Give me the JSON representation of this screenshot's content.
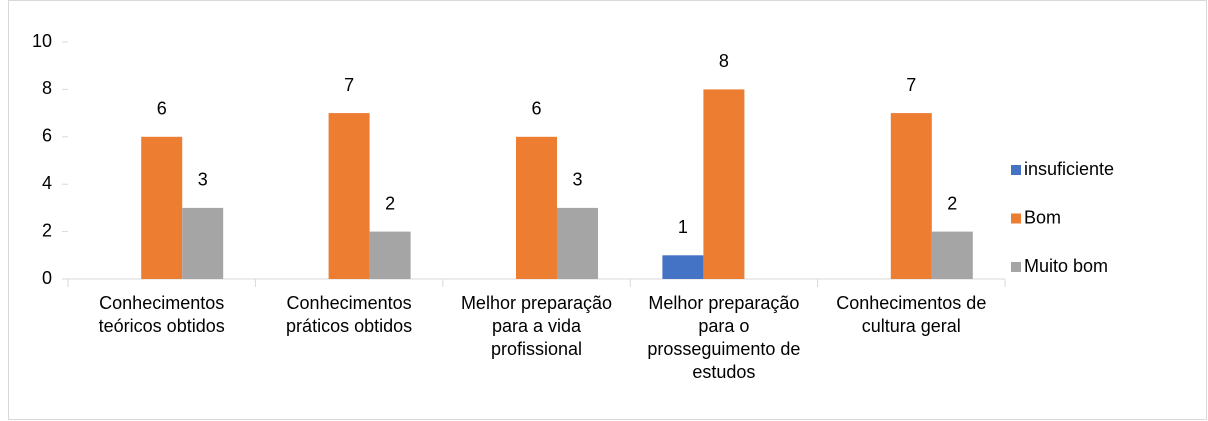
{
  "chart_data": {
    "type": "bar",
    "categories": [
      "Conhecimentos teóricos obtidos",
      "Conhecimentos práticos obtidos",
      "Melhor preparação para a vida profissional",
      "Melhor preparação para o prosseguimento de estudos",
      "Conhecimentos de cultura geral"
    ],
    "series": [
      {
        "name": "insuficiente",
        "color": "#4472c4",
        "values": [
          null,
          null,
          null,
          1,
          null
        ]
      },
      {
        "name": "Bom",
        "color": "#ed7d31",
        "values": [
          6,
          7,
          6,
          8,
          7
        ]
      },
      {
        "name": "Muito bom",
        "color": "#a5a5a5",
        "values": [
          3,
          2,
          3,
          null,
          2
        ]
      }
    ],
    "ylim": [
      0,
      10
    ],
    "yticks": [
      0,
      2,
      4,
      6,
      8,
      10
    ],
    "grid": false,
    "legend": "right"
  }
}
